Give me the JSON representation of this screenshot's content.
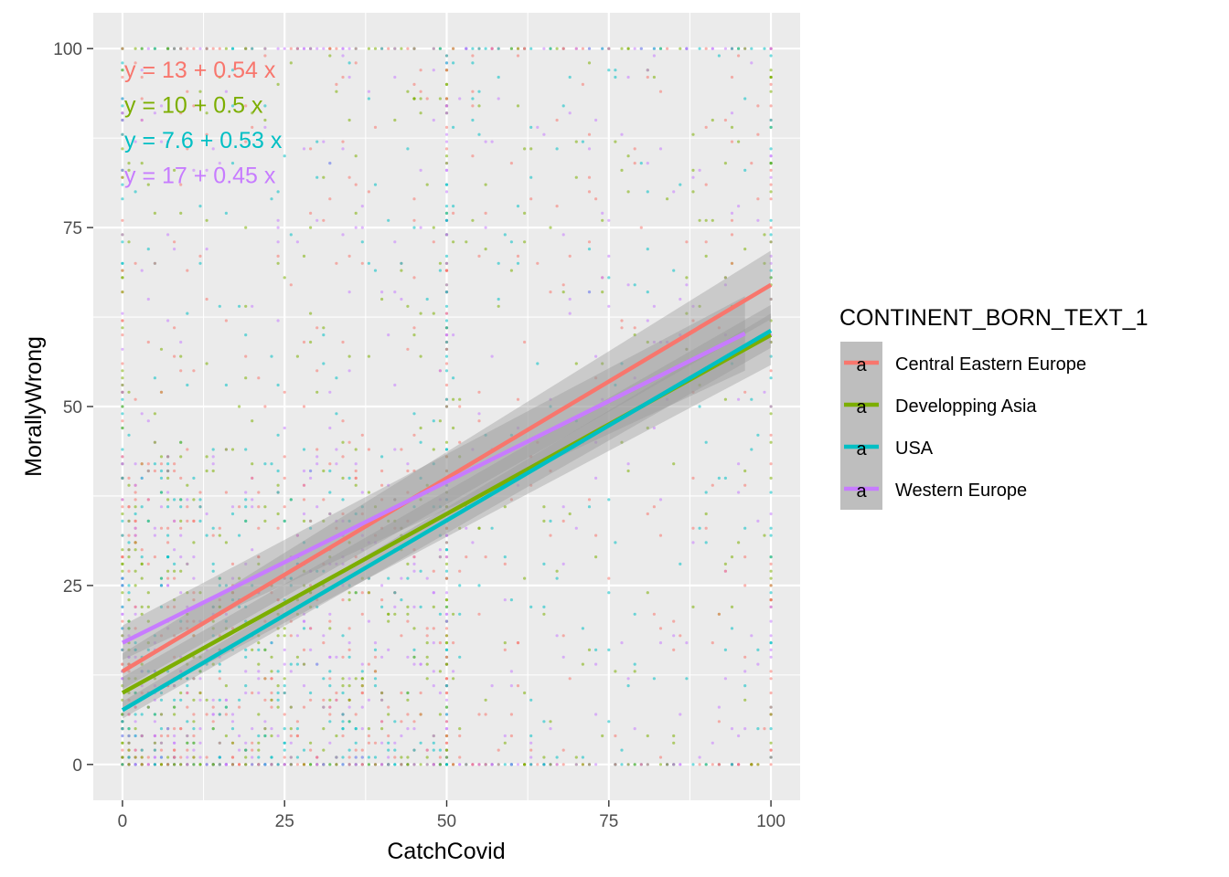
{
  "chart_data": {
    "type": "scatter",
    "title": "",
    "xlabel": "CatchCovid",
    "ylabel": "MorallyWrong",
    "xlim": [
      -4.5,
      104.5
    ],
    "ylim": [
      -5,
      105
    ],
    "x_ticks": [
      0,
      25,
      50,
      75,
      100
    ],
    "y_ticks": [
      0,
      25,
      50,
      75,
      100
    ],
    "x_tick_labels": [
      "0",
      "25",
      "50",
      "75",
      "100"
    ],
    "y_tick_labels": [
      "0",
      "25",
      "50",
      "75",
      "100"
    ],
    "grid": true,
    "legend": {
      "title": "CONTINENT_BORN_TEXT_1",
      "position": "right",
      "key_glyph": "a"
    },
    "series": [
      {
        "name": "Central Eastern Europe",
        "color": "#F8766D",
        "intercept": 13,
        "slope": 0.54,
        "x_range": [
          0,
          100
        ],
        "equation": "y = 13 + 0.54 x",
        "ci_halfwidth_at_ends": [
          2.5,
          4.8
        ]
      },
      {
        "name": "Developping Asia",
        "color": "#7CAE00",
        "intercept": 10,
        "slope": 0.5,
        "x_range": [
          0,
          100
        ],
        "equation": "y = 10 + 0.5 x",
        "ci_halfwidth_at_ends": [
          2.2,
          4.2
        ]
      },
      {
        "name": "USA",
        "color": "#00BFC4",
        "intercept": 7.6,
        "slope": 0.53,
        "x_range": [
          0,
          100
        ],
        "equation": "y = 7.6 + 0.53 x",
        "ci_halfwidth_at_ends": [
          1.2,
          2.4
        ]
      },
      {
        "name": "Western Europe",
        "color": "#C77CFF",
        "intercept": 17,
        "slope": 0.45,
        "x_range": [
          0,
          96
        ],
        "equation": "y = 17 + 0.45 x",
        "ci_halfwidth_at_ends": [
          2.4,
          5.2
        ]
      }
    ]
  }
}
